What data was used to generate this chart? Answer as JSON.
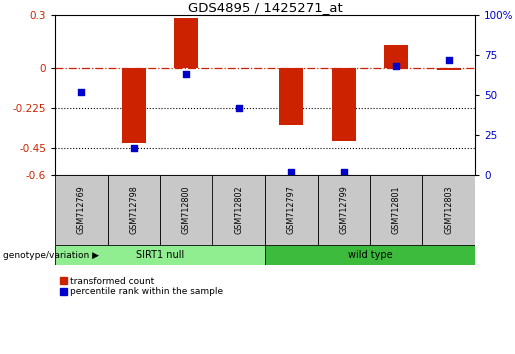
{
  "title": "GDS4895 / 1425271_at",
  "samples": [
    "GSM712769",
    "GSM712798",
    "GSM712800",
    "GSM712802",
    "GSM712797",
    "GSM712799",
    "GSM712801",
    "GSM712803"
  ],
  "transformed_count": [
    0.0,
    -0.42,
    0.285,
    0.0,
    -0.32,
    -0.41,
    0.13,
    -0.01
  ],
  "percentile_rank": [
    52,
    17,
    63,
    42,
    2,
    2,
    68,
    72
  ],
  "left_ylim": [
    -0.6,
    0.3
  ],
  "right_ylim": [
    0,
    100
  ],
  "left_yticks": [
    0.3,
    0.0,
    -0.225,
    -0.45,
    -0.6
  ],
  "right_yticks": [
    100,
    75,
    50,
    25,
    0
  ],
  "dotted_line_values": [
    -0.225,
    -0.45
  ],
  "dashdot_line_value": 0.0,
  "group1_label": "SIRT1 null",
  "group2_label": "wild type",
  "group1_indices": [
    0,
    1,
    2,
    3
  ],
  "group2_indices": [
    4,
    5,
    6,
    7
  ],
  "legend_labels": [
    "transformed count",
    "percentile rank within the sample"
  ],
  "bar_color": "#cc2200",
  "dot_color": "#0000cc",
  "group1_color": "#90ee90",
  "group2_color": "#3dbb3d",
  "sample_box_color": "#c8c8c8",
  "xlabel_color": "#cc2200",
  "right_axis_color": "#0000cc",
  "genotype_label": "genotype/variation"
}
